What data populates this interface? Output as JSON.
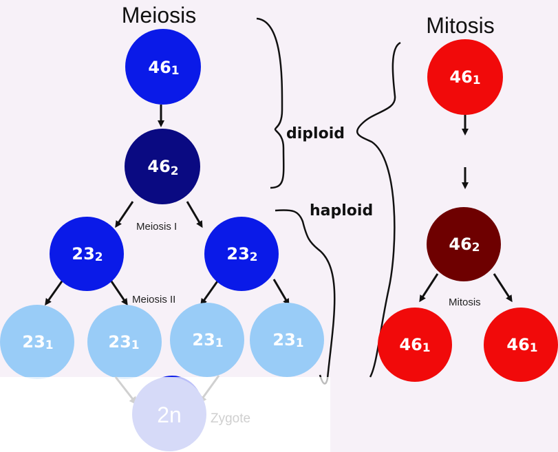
{
  "titles": {
    "meiosis": "Meiosis",
    "mitosis": "Mitosis"
  },
  "labels": {
    "diploid": "diploid",
    "haploid": "haploid",
    "meiosis_i": "Meiosis I",
    "meiosis_ii": "Meiosis II",
    "mitosis": "Mitosis",
    "zygote": "Zygote"
  },
  "cells": {
    "meiosis_top": {
      "num": "46",
      "sub": "1",
      "color": "#0a1ae8"
    },
    "meiosis_replicated": {
      "num": "46",
      "sub": "2",
      "color": "#0a0a82"
    },
    "meiosis_i_left": {
      "num": "23",
      "sub": "2",
      "color": "#0a1ae8"
    },
    "meiosis_i_right": {
      "num": "23",
      "sub": "2",
      "color": "#0a1ae8"
    },
    "gamete_1": {
      "num": "23",
      "sub": "1",
      "color": "#99ccf7"
    },
    "gamete_2": {
      "num": "23",
      "sub": "1",
      "color": "#99ccf7"
    },
    "gamete_3": {
      "num": "23",
      "sub": "1",
      "color": "#99ccf7"
    },
    "gamete_4": {
      "num": "23",
      "sub": "1",
      "color": "#99ccf7"
    },
    "zygote": {
      "text": "2n",
      "color": "#d6daf8"
    },
    "mitosis_top": {
      "num": "46",
      "sub": "1",
      "color": "#f10a0a"
    },
    "mitosis_replicated": {
      "num": "46",
      "sub": "2",
      "color": "#6e0000"
    },
    "mitosis_left": {
      "num": "46",
      "sub": "1",
      "color": "#f10a0a"
    },
    "mitosis_right": {
      "num": "46",
      "sub": "1",
      "color": "#f10a0a"
    }
  }
}
